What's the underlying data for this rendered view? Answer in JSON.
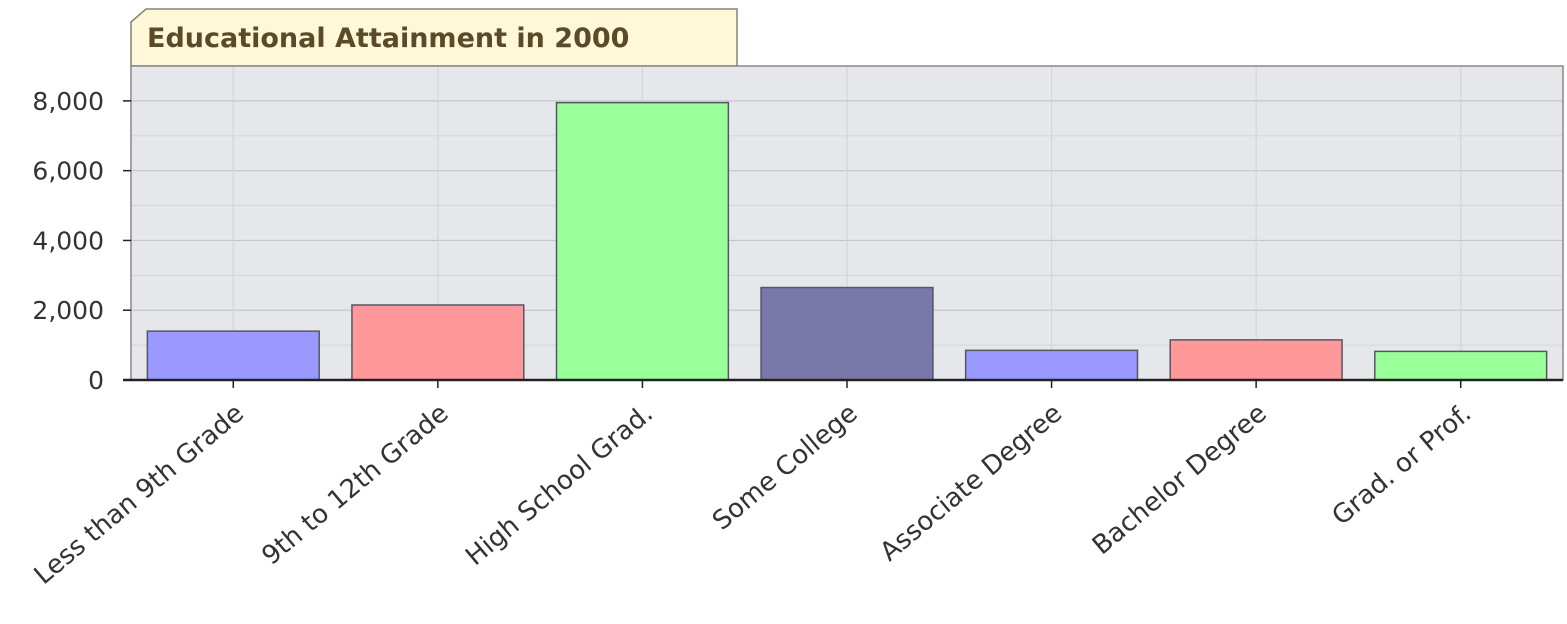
{
  "chart_data": {
    "type": "bar",
    "title": "Educational Attainment in 2000",
    "xlabel": "",
    "ylabel": "",
    "categories": [
      "Less than 9th Grade",
      "9th to 12th Grade",
      "High School Grad.",
      "Some College",
      "Associate Degree",
      "Bachelor Degree",
      "Grad. or Prof."
    ],
    "values": [
      1400,
      2150,
      7950,
      2650,
      850,
      1150,
      820
    ],
    "colors": [
      "#9999ff",
      "#ff9999",
      "#99ff99",
      "#7a77aa",
      "#9999ff",
      "#ff9999",
      "#99ff99"
    ],
    "yticks": [
      0,
      2000,
      4000,
      6000,
      8000
    ],
    "ytick_labels": [
      "0",
      "2,000",
      "4,000",
      "6,000",
      "8,000"
    ],
    "ylim": [
      0,
      9000
    ],
    "grid": true,
    "plot_background": "#e6e7ea",
    "title_background": "#fff8d8"
  }
}
